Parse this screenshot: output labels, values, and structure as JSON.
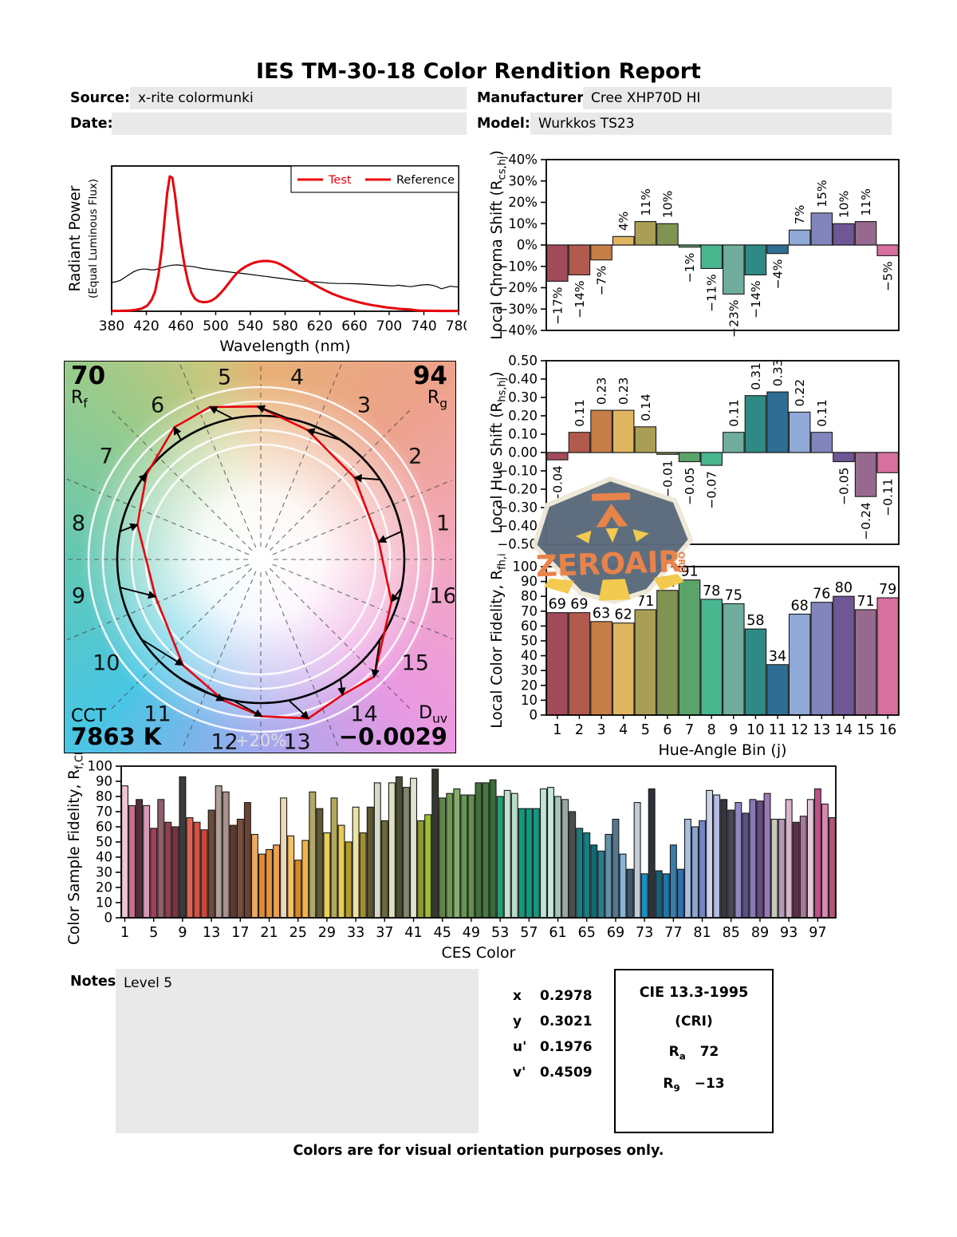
{
  "title": "IES TM-30-18 Color Rendition Report",
  "header": {
    "source_label": "Source:",
    "source": "x-rite colormunki",
    "manufacturer_label": "Manufacturer:",
    "manufacturer": "Cree XHP70D HI",
    "date_label": "Date:",
    "date": "",
    "model_label": "Model:",
    "model": "Wurkkos TS23"
  },
  "cvg": {
    "rf": "70",
    "rf_label": "R",
    "rf_sub": "f",
    "rg": "94",
    "rg_label": "R",
    "rg_sub": "g",
    "cct_label": "CCT",
    "cct": "7863 K",
    "duv_label": "D",
    "duv_sub": "uv",
    "duv": "−0.0029",
    "ring_label": "+20%",
    "bin_numbers": [
      "1",
      "2",
      "3",
      "4",
      "5",
      "6",
      "7",
      "8",
      "9",
      "10",
      "11",
      "12",
      "13",
      "14",
      "15",
      "16"
    ]
  },
  "watermark": {
    "text": "ZEROAIR",
    "suffix": "ORG"
  },
  "notes": {
    "label": "Notes:",
    "text": "Level 5"
  },
  "chromaticity": {
    "rows": [
      [
        "x",
        "0.2978"
      ],
      [
        "y",
        "0.3021"
      ],
      [
        "u'",
        "0.1976"
      ],
      [
        "v'",
        "0.4509"
      ]
    ]
  },
  "cri_box": {
    "title": "CIE 13.3-1995",
    "subtitle": "(CRI)",
    "ra_label": "R",
    "ra_sub": "a",
    "ra": "72",
    "r9_label": "R",
    "r9_sub": "9",
    "r9": "−13"
  },
  "footer": "Colors are for visual orientation purposes only.",
  "chart_data": [
    {
      "id": "spd",
      "type": "line",
      "xlabel": "Wavelength (nm)",
      "ylabel": "Radiant Power",
      "ylabel2": "(Equal Luminous Flux)",
      "xlim": [
        380,
        780
      ],
      "xticks": [
        "380",
        "420",
        "460",
        "500",
        "540",
        "580",
        "620",
        "660",
        "700",
        "740",
        "780"
      ],
      "legend": [
        {
          "label": "Test"
        },
        {
          "label": "Reference"
        }
      ],
      "test_color": "#e8000b",
      "reference_color": "#000000",
      "series": [
        {
          "name": "Test",
          "points": [
            [
              380,
              0.002
            ],
            [
              390,
              0.003
            ],
            [
              400,
              0.005
            ],
            [
              408,
              0.01
            ],
            [
              415,
              0.02
            ],
            [
              421,
              0.04
            ],
            [
              426,
              0.08
            ],
            [
              430,
              0.14
            ],
            [
              434,
              0.26
            ],
            [
              438,
              0.45
            ],
            [
              441,
              0.65
            ],
            [
              444,
              0.84
            ],
            [
              447,
              0.96
            ],
            [
              450,
              0.95
            ],
            [
              453,
              0.83
            ],
            [
              456,
              0.67
            ],
            [
              460,
              0.48
            ],
            [
              464,
              0.33
            ],
            [
              468,
              0.21
            ],
            [
              472,
              0.13
            ],
            [
              476,
              0.09
            ],
            [
              480,
              0.072
            ],
            [
              485,
              0.065
            ],
            [
              490,
              0.066
            ],
            [
              495,
              0.075
            ],
            [
              500,
              0.095
            ],
            [
              505,
              0.125
            ],
            [
              510,
              0.16
            ],
            [
              515,
              0.2
            ],
            [
              520,
              0.24
            ],
            [
              525,
              0.275
            ],
            [
              530,
              0.3
            ],
            [
              535,
              0.32
            ],
            [
              540,
              0.335
            ],
            [
              545,
              0.347
            ],
            [
              550,
              0.354
            ],
            [
              555,
              0.358
            ],
            [
              560,
              0.358
            ],
            [
              565,
              0.354
            ],
            [
              570,
              0.346
            ],
            [
              575,
              0.333
            ],
            [
              580,
              0.316
            ],
            [
              585,
              0.297
            ],
            [
              590,
              0.277
            ],
            [
              595,
              0.257
            ],
            [
              600,
              0.238
            ],
            [
              605,
              0.22
            ],
            [
              610,
              0.202
            ],
            [
              615,
              0.185
            ],
            [
              620,
              0.168
            ],
            [
              625,
              0.152
            ],
            [
              630,
              0.137
            ],
            [
              635,
              0.123
            ],
            [
              640,
              0.111
            ],
            [
              645,
              0.1
            ],
            [
              650,
              0.09
            ],
            [
              655,
              0.081
            ],
            [
              660,
              0.072
            ],
            [
              665,
              0.064
            ],
            [
              670,
              0.057
            ],
            [
              675,
              0.05
            ],
            [
              680,
              0.044
            ],
            [
              685,
              0.039
            ],
            [
              690,
              0.034
            ],
            [
              695,
              0.029
            ],
            [
              700,
              0.025
            ],
            [
              705,
              0.022
            ],
            [
              710,
              0.019
            ],
            [
              715,
              0.016
            ],
            [
              720,
              0.014
            ],
            [
              725,
              0.012
            ],
            [
              730,
              0.008
            ],
            [
              735,
              0.005
            ],
            [
              740,
              0.004
            ],
            [
              750,
              0.003
            ],
            [
              760,
              0.002
            ],
            [
              770,
              0.002
            ],
            [
              780,
              0.002
            ]
          ]
        },
        {
          "name": "Reference",
          "points": [
            [
              380,
              0.205
            ],
            [
              385,
              0.21
            ],
            [
              390,
              0.22
            ],
            [
              395,
              0.24
            ],
            [
              400,
              0.26
            ],
            [
              405,
              0.28
            ],
            [
              410,
              0.293
            ],
            [
              415,
              0.3
            ],
            [
              420,
              0.3
            ],
            [
              425,
              0.295
            ],
            [
              430,
              0.295
            ],
            [
              435,
              0.305
            ],
            [
              440,
              0.315
            ],
            [
              445,
              0.323
            ],
            [
              450,
              0.328
            ],
            [
              455,
              0.33
            ],
            [
              460,
              0.327
            ],
            [
              465,
              0.322
            ],
            [
              470,
              0.32
            ],
            [
              475,
              0.317
            ],
            [
              480,
              0.31
            ],
            [
              485,
              0.304
            ],
            [
              490,
              0.3
            ],
            [
              495,
              0.296
            ],
            [
              500,
              0.292
            ],
            [
              510,
              0.284
            ],
            [
              520,
              0.276
            ],
            [
              530,
              0.27
            ],
            [
              540,
              0.262
            ],
            [
              550,
              0.254
            ],
            [
              560,
              0.246
            ],
            [
              570,
              0.238
            ],
            [
              580,
              0.23
            ],
            [
              590,
              0.221
            ],
            [
              600,
              0.214
            ],
            [
              610,
              0.21
            ],
            [
              620,
              0.206
            ],
            [
              630,
              0.2
            ],
            [
              640,
              0.198
            ],
            [
              650,
              0.197
            ],
            [
              660,
              0.196
            ],
            [
              670,
              0.193
            ],
            [
              680,
              0.19
            ],
            [
              690,
              0.185
            ],
            [
              700,
              0.182
            ],
            [
              705,
              0.18
            ],
            [
              710,
              0.185
            ],
            [
              715,
              0.182
            ],
            [
              720,
              0.178
            ],
            [
              725,
              0.175
            ],
            [
              730,
              0.18
            ],
            [
              735,
              0.185
            ],
            [
              740,
              0.188
            ],
            [
              745,
              0.19
            ],
            [
              750,
              0.185
            ],
            [
              755,
              0.175
            ],
            [
              760,
              0.16
            ],
            [
              765,
              0.168
            ],
            [
              770,
              0.178
            ],
            [
              775,
              0.175
            ],
            [
              780,
              0.172
            ]
          ]
        }
      ]
    },
    {
      "id": "chroma_shift",
      "type": "bar",
      "ylabel_pre": "Local Chroma Shift (R",
      "ylabel_sub": "cs,hj",
      "ylabel_post": ")",
      "ylim": [
        -40,
        40
      ],
      "yticks": [
        "40%",
        "30%",
        "20%",
        "10%",
        "0%",
        "−10%",
        "−20%",
        "−30%",
        "−40%"
      ],
      "values": [
        -17,
        -14,
        -7,
        4,
        11,
        10,
        -1,
        -11,
        -23,
        -14,
        -4,
        7,
        15,
        10,
        11,
        -5
      ],
      "labels": [
        "−17%",
        "−14%",
        "−7%",
        "4%",
        "11%",
        "10%",
        "−1%",
        "−11%",
        "−23%",
        "−14%",
        "−4%",
        "7%",
        "15%",
        "10%",
        "11%",
        "−5%"
      ],
      "colors": [
        "#a34a5a",
        "#b25a4e",
        "#c77e46",
        "#dfb560",
        "#aa9e55",
        "#7f9452",
        "#5aa469",
        "#49b690",
        "#6fae9e",
        "#2d8a84",
        "#2f6e94",
        "#8fa9d8",
        "#8086bc",
        "#6f5694",
        "#97698f",
        "#d76f9f"
      ]
    },
    {
      "id": "hue_shift",
      "type": "bar",
      "ylabel_pre": "Local Hue Shift (R",
      "ylabel_sub": "hs,hj",
      "ylabel_post": ")",
      "ylim": [
        -0.5,
        0.5
      ],
      "yticks": [
        "0.50",
        "0.40",
        "0.30",
        "0.20",
        "0.10",
        "0.00",
        "−0.10",
        "−0.20",
        "−0.30",
        "−0.40",
        "−0.50"
      ],
      "values": [
        -0.04,
        0.11,
        0.23,
        0.23,
        0.14,
        -0.01,
        -0.05,
        -0.07,
        0.11,
        0.31,
        0.33,
        0.22,
        0.11,
        -0.05,
        -0.24,
        -0.11
      ],
      "labels": [
        "−0.04",
        "0.11",
        "0.23",
        "0.23",
        "0.14",
        "−0.01",
        "−0.05",
        "−0.07",
        "0.11",
        "0.31",
        "0.33",
        "0.22",
        "0.11",
        "−0.05",
        "−0.24",
        "−0.11"
      ],
      "colors": [
        "#a34a5a",
        "#b25a4e",
        "#c77e46",
        "#dfb560",
        "#aa9e55",
        "#7f9452",
        "#5aa469",
        "#49b690",
        "#6fae9e",
        "#2d8a84",
        "#2f6e94",
        "#8fa9d8",
        "#8086bc",
        "#6f5694",
        "#97698f",
        "#d76f9f"
      ]
    },
    {
      "id": "local_fidelity",
      "type": "bar",
      "ylabel_pre": "Local Color Fidelity, R",
      "ylabel_sub": "fh,i",
      "ylabel_post": "",
      "xlabel": "Hue-Angle Bin (j)",
      "ylim": [
        0,
        100
      ],
      "yticks": [
        "100",
        "90",
        "80",
        "70",
        "60",
        "50",
        "40",
        "30",
        "20",
        "10",
        "0"
      ],
      "xticks": [
        "1",
        "2",
        "3",
        "4",
        "5",
        "6",
        "7",
        "8",
        "9",
        "10",
        "11",
        "12",
        "13",
        "14",
        "15",
        "16"
      ],
      "values": [
        69,
        69,
        63,
        62,
        71,
        84,
        91,
        78,
        75,
        58,
        34,
        68,
        76,
        80,
        71,
        79
      ],
      "labels": [
        "69",
        "69",
        "63",
        "62",
        "71",
        "84",
        "91",
        "78",
        "75",
        "58",
        "34",
        "68",
        "76",
        "80",
        "71",
        "79"
      ],
      "colors": [
        "#a34a5a",
        "#b25a4e",
        "#c77e46",
        "#dfb560",
        "#aa9e55",
        "#7f9452",
        "#5aa469",
        "#49b690",
        "#6fae9e",
        "#2d8a84",
        "#2f6e94",
        "#8fa9d8",
        "#8086bc",
        "#6f5694",
        "#97698f",
        "#d76f9f"
      ]
    },
    {
      "id": "ces_fidelity",
      "type": "bar",
      "ylabel_pre": "Color Sample Fidelity, R",
      "ylabel_sub": "f,CESi",
      "ylabel_post": "",
      "xlabel": "CES Color",
      "ylim": [
        0,
        100
      ],
      "yticks": [
        "100",
        "90",
        "80",
        "70",
        "60",
        "50",
        "40",
        "30",
        "20",
        "10",
        "0"
      ],
      "xticks": [
        "1",
        "5",
        "9",
        "13",
        "17",
        "21",
        "25",
        "29",
        "33",
        "37",
        "41",
        "45",
        "49",
        "53",
        "57",
        "61",
        "65",
        "69",
        "73",
        "77",
        "81",
        "85",
        "89",
        "93",
        "97"
      ],
      "values": [
        87,
        74,
        78,
        74,
        59,
        78,
        63,
        60,
        93,
        66,
        63,
        58,
        71,
        87,
        83,
        61,
        65,
        76,
        55,
        42,
        45,
        48,
        79,
        54,
        38,
        51,
        83,
        72,
        56,
        79,
        61,
        50,
        73,
        56,
        73,
        89,
        64,
        89,
        93,
        86,
        92,
        64,
        68,
        98,
        79,
        82,
        85,
        81,
        81,
        89,
        89,
        91,
        80,
        84,
        82,
        72,
        72,
        72,
        85,
        86,
        80,
        78,
        70,
        59,
        56,
        48,
        44,
        55,
        65,
        42,
        32,
        76,
        29,
        85,
        31,
        29,
        48,
        32,
        65,
        60,
        64,
        84,
        81,
        78,
        71,
        76,
        69,
        78,
        77,
        82,
        65,
        65,
        78,
        63,
        67,
        78,
        85,
        75,
        66
      ],
      "colors": [
        "#f0c5d6",
        "#c96f90",
        "#572c3c",
        "#d898b6",
        "#a63f55",
        "#8f5f6a",
        "#8f3f4d",
        "#7a3340",
        "#3b3b3d",
        "#de6351",
        "#d55140",
        "#cc4636",
        "#704a3a",
        "#b39e95",
        "#a7928b",
        "#5f3a30",
        "#7c4d3b",
        "#6b4332",
        "#efa95f",
        "#df8a32",
        "#e8953f",
        "#efa14a",
        "#ecd9b9",
        "#f5c162",
        "#d8871e",
        "#efb546",
        "#b2a767",
        "#5f5a35",
        "#ebd250",
        "#b2a75a",
        "#e7cb52",
        "#b29b2b",
        "#ece3a2",
        "#a08e30",
        "#5c5630",
        "#d5d9c5",
        "#6b683c",
        "#dfe0c1",
        "#4c4f36",
        "#83866a",
        "#dee5cf",
        "#8b9b32",
        "#9fbc2d",
        "#343830",
        "#5f8548",
        "#6d9a55",
        "#86ae6a",
        "#679552",
        "#618f4f",
        "#42713c",
        "#477843",
        "#3a6b3a",
        "#21a070",
        "#c2e2cf",
        "#b5dcc7",
        "#12997e",
        "#10997e",
        "#13997f",
        "#bfe4d6",
        "#c6e8da",
        "#a6c4b8",
        "#9aa8a2",
        "#4a4f4e",
        "#157f81",
        "#128084",
        "#0e6b74",
        "#297d92",
        "#6292a8",
        "#55788e",
        "#86b4d6",
        "#3a5a72",
        "#c3ccd4",
        "#1b8ec4",
        "#2e3338",
        "#1a5f78",
        "#1878b0",
        "#3b7ca8",
        "#2a72b0",
        "#a8bede",
        "#8ba4d4",
        "#7286c4",
        "#ccd2ec",
        "#b4bce4",
        "#36343c",
        "#4a4458",
        "#9088c4",
        "#585088",
        "#8878b4",
        "#6a4a80",
        "#9a7ab8",
        "#c6c8bc",
        "#b49ab4",
        "#d8b4cc",
        "#5e3048",
        "#a87898",
        "#e8c8da",
        "#c05088",
        "#d888ae",
        "#b05578"
      ]
    },
    {
      "id": "color_vector_graphic",
      "type": "radar",
      "rf": 70,
      "rg": 94,
      "cct": "7863 K",
      "duv": "−0.0029",
      "note": "red test polygon derived from chroma_shift (%) and hue_shift (rad) per hue bin"
    }
  ]
}
